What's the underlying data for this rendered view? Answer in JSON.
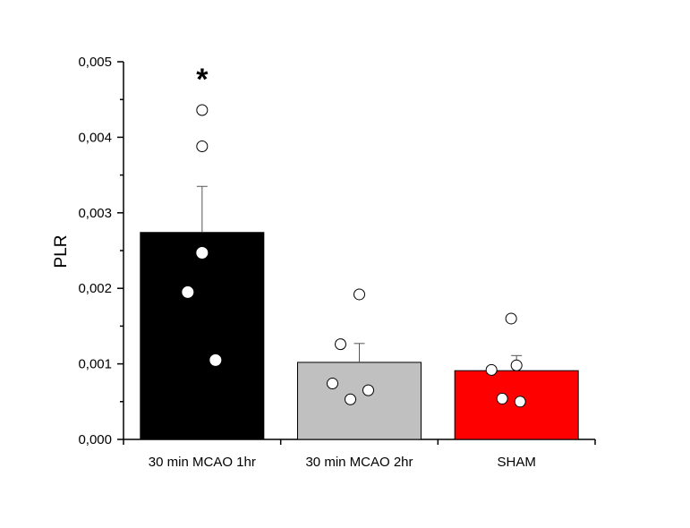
{
  "chart_data": {
    "type": "bar",
    "title": "",
    "xlabel": "",
    "ylabel": "PLR",
    "ylim": [
      0,
      0.005
    ],
    "yticks": [
      "0,000",
      "0,001",
      "0,002",
      "0,003",
      "0,004",
      "0,005"
    ],
    "categories": [
      "30 min MCAO 1hr",
      "30 min MCAO 2hr",
      "SHAM"
    ],
    "values": [
      0.00274,
      0.00102,
      0.00091
    ],
    "error_upper": [
      0.00335,
      0.00127,
      0.00111
    ],
    "colors": [
      "#000000",
      "#c0c0c0",
      "#ff0000"
    ],
    "points": [
      [
        0.00436,
        0.00388,
        0.00247,
        0.00195,
        0.00105
      ],
      [
        0.00192,
        0.00126,
        0.00074,
        0.00065,
        0.00053
      ],
      [
        0.0016,
        0.00098,
        0.00092,
        0.00054,
        0.0005
      ]
    ],
    "annotations": [
      {
        "text": "*",
        "category": "30 min MCAO 1hr"
      }
    ],
    "grid": false,
    "legend": "none"
  }
}
